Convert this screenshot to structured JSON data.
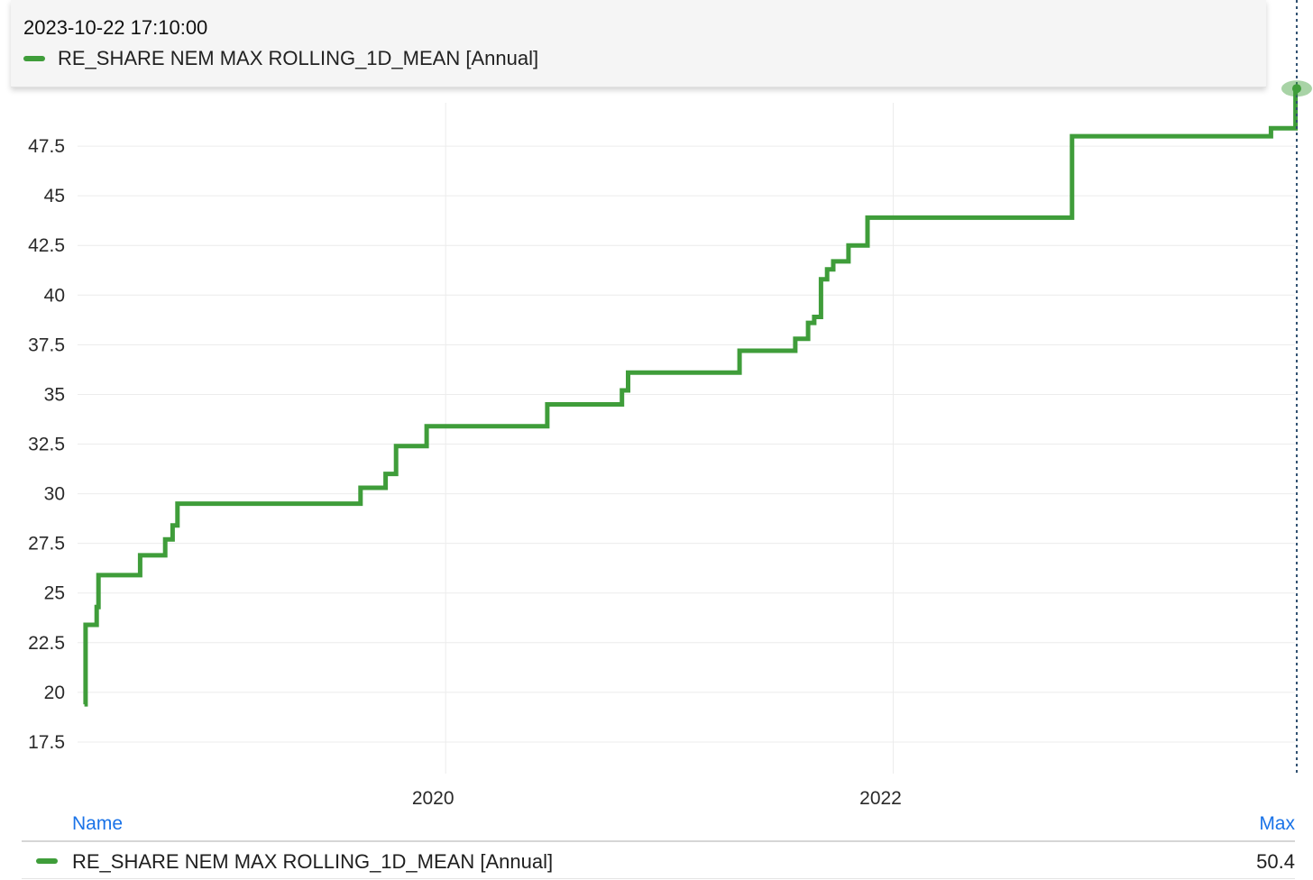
{
  "tooltip": {
    "timestamp": "2023-10-22 17:10:00",
    "series_label": "RE_SHARE NEM MAX ROLLING_1D_MEAN [Annual]"
  },
  "legend": {
    "name_header": "Name",
    "max_header": "Max",
    "rows": [
      {
        "label": "RE_SHARE NEM MAX ROLLING_1D_MEAN [Annual]",
        "max": "50.4"
      }
    ]
  },
  "colors": {
    "series": "#3f9d3a",
    "accent_link": "#1a73e8",
    "grid": "#ececec",
    "crosshair": "#2f4f6f"
  },
  "chart_data": {
    "type": "line",
    "step": true,
    "title": "",
    "xlabel": "",
    "ylabel": "",
    "x_ticks": [
      "2020",
      "2022"
    ],
    "y_ticks": [
      "17.5",
      "20",
      "22.5",
      "25",
      "27.5",
      "30",
      "32.5",
      "35",
      "37.5",
      "40",
      "42.5",
      "45",
      "47.5"
    ],
    "ylim": [
      16,
      50.5
    ],
    "xlim": [
      "2018-05-01",
      "2023-10-25"
    ],
    "grid": true,
    "legend_position": "bottom",
    "series": [
      {
        "name": "RE_SHARE NEM MAX ROLLING_1D_MEAN [Annual]",
        "points": [
          [
            "2018-05-21",
            19.4
          ],
          [
            "2018-05-23",
            23.4
          ],
          [
            "2018-06-10",
            24.3
          ],
          [
            "2018-06-13",
            25.9
          ],
          [
            "2018-08-20",
            26.9
          ],
          [
            "2018-09-30",
            27.7
          ],
          [
            "2018-10-12",
            28.4
          ],
          [
            "2018-10-20",
            29.5
          ],
          [
            "2019-08-15",
            30.3
          ],
          [
            "2019-09-25",
            31.0
          ],
          [
            "2019-10-12",
            32.4
          ],
          [
            "2019-12-01",
            33.4
          ],
          [
            "2020-06-15",
            34.5
          ],
          [
            "2020-10-15",
            35.2
          ],
          [
            "2020-10-25",
            36.1
          ],
          [
            "2021-04-25",
            37.2
          ],
          [
            "2021-07-25",
            37.8
          ],
          [
            "2021-08-15",
            38.6
          ],
          [
            "2021-08-25",
            38.9
          ],
          [
            "2021-09-05",
            40.8
          ],
          [
            "2021-09-15",
            41.3
          ],
          [
            "2021-09-25",
            41.7
          ],
          [
            "2021-10-20",
            42.5
          ],
          [
            "2021-11-20",
            43.9
          ],
          [
            "2022-10-20",
            48.0
          ],
          [
            "2023-09-10",
            48.4
          ],
          [
            "2023-10-20",
            50.4
          ],
          [
            "2023-10-22",
            50.4
          ]
        ]
      }
    ]
  }
}
